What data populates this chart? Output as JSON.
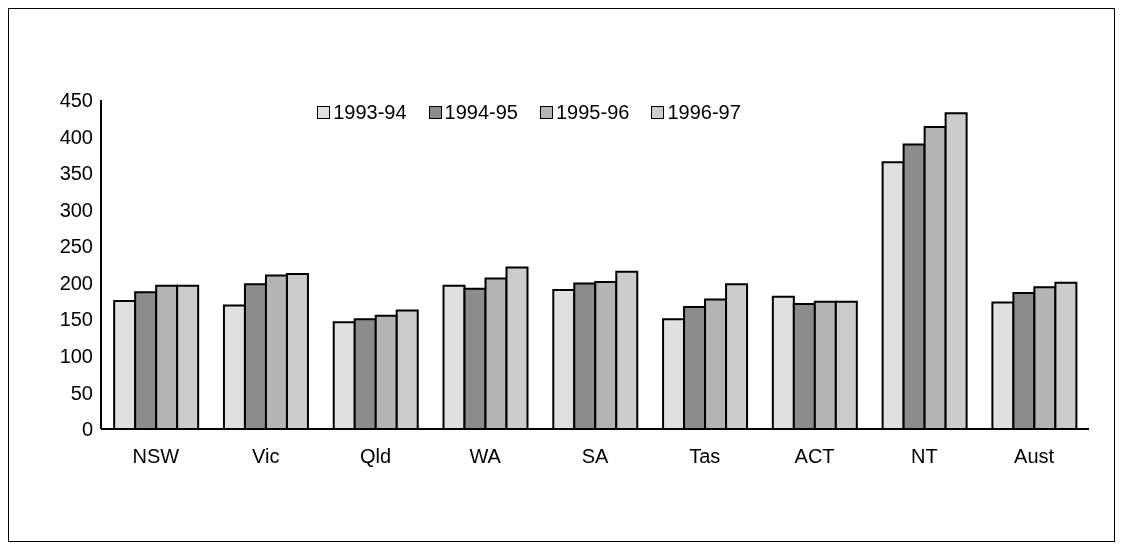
{
  "chart_data": {
    "type": "bar",
    "categories": [
      "NSW",
      "Vic",
      "Qld",
      "WA",
      "SA",
      "Tas",
      "ACT",
      "NT",
      "Aust"
    ],
    "series": [
      {
        "name": "1993-94",
        "color": "#e0e0e0",
        "values": [
          175,
          169,
          146,
          196,
          190,
          150,
          181,
          365,
          173
        ]
      },
      {
        "name": "1994-95",
        "color": "#8c8c8c",
        "values": [
          187,
          198,
          150,
          192,
          199,
          167,
          171,
          389,
          186
        ]
      },
      {
        "name": "1995-96",
        "color": "#b4b4b4",
        "values": [
          196,
          210,
          155,
          206,
          201,
          177,
          174,
          413,
          194
        ]
      },
      {
        "name": "1996-97",
        "color": "#cccccc",
        "values": [
          196,
          212,
          162,
          221,
          215,
          198,
          174,
          432,
          200
        ]
      }
    ],
    "ylim": [
      0,
      450
    ],
    "yticks": [
      0,
      50,
      100,
      150,
      200,
      250,
      300,
      350,
      400,
      450
    ],
    "grid": false,
    "legend": "top"
  }
}
